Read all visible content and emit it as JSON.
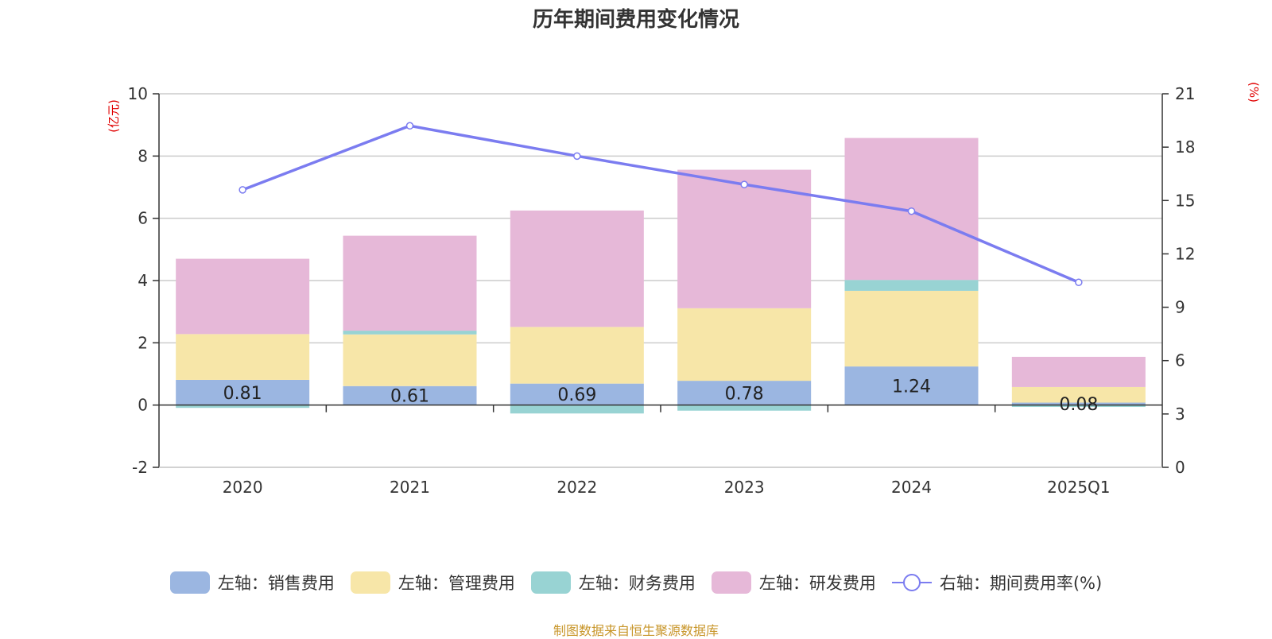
{
  "title": "历年期间费用变化情况",
  "source": "制图数据来自恒生聚源数据库",
  "chart_data": {
    "type": "bar",
    "stacked": true,
    "categories": [
      "2020",
      "2021",
      "2022",
      "2023",
      "2024",
      "2025Q1"
    ],
    "left_axis": {
      "unit": "(亿元)",
      "min": -2,
      "max": 10,
      "ticks": [
        "-2",
        "0",
        "2",
        "4",
        "6",
        "8",
        "10"
      ]
    },
    "right_axis": {
      "unit": "(%)",
      "min": 0,
      "max": 21,
      "ticks": [
        "0",
        "3",
        "6",
        "9",
        "12",
        "15",
        "18",
        "21"
      ]
    },
    "series": [
      {
        "name": "左轴：销售费用",
        "key": "sales",
        "color": "#9bb6e1",
        "values": [
          0.81,
          0.61,
          0.69,
          0.78,
          1.24,
          0.08
        ],
        "labels": [
          "0.81",
          "0.61",
          "0.69",
          "0.78",
          "1.24",
          "0.08"
        ]
      },
      {
        "name": "左轴：管理费用",
        "key": "admin",
        "color": "#f7e6a8",
        "values": [
          1.47,
          1.66,
          1.82,
          2.33,
          2.43,
          0.5
        ]
      },
      {
        "name": "左轴：财务费用",
        "key": "finance",
        "color": "#98d3d3",
        "values": [
          -0.09,
          0.12,
          -0.27,
          -0.18,
          0.35,
          -0.06
        ]
      },
      {
        "name": "左轴：研发费用",
        "key": "rd",
        "color": "#e6b8d8",
        "values": [
          2.42,
          3.05,
          3.74,
          4.45,
          4.56,
          0.97
        ]
      }
    ],
    "line": {
      "name": "右轴：期间费用率(%)",
      "color": "#7b7cf0",
      "values": [
        15.6,
        19.2,
        17.5,
        15.9,
        14.4,
        10.4
      ]
    },
    "legend_position": "bottom"
  }
}
